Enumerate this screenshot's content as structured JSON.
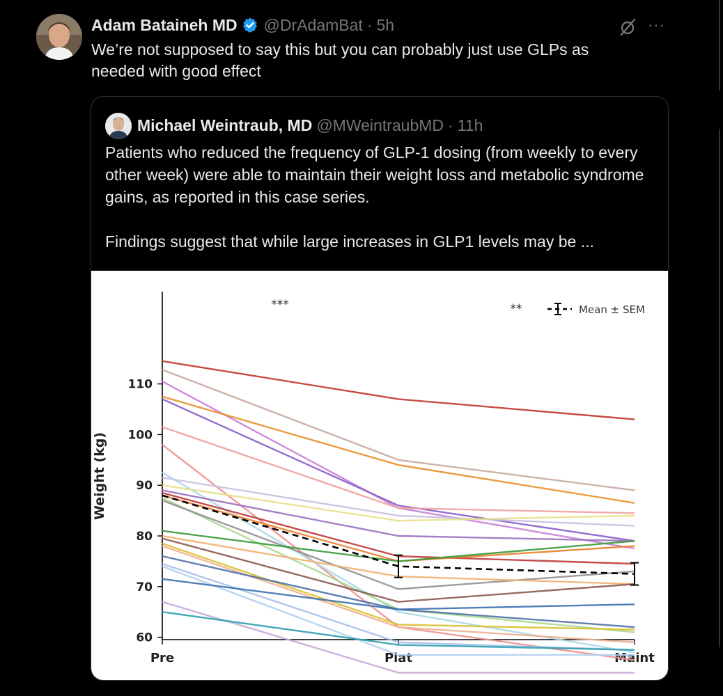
{
  "tweet": {
    "author_name": "Adam Bataineh MD",
    "handle": "@DrAdamBat",
    "separator": "·",
    "time": "5h",
    "text": "We’re not supposed to say this but you can probably just use GLPs as needed with good effect",
    "verified_color": "#1d9bf0",
    "more_label": "···"
  },
  "quote": {
    "author_name": "Michael Weintraub, MD",
    "handle": "@MWeintraubMD",
    "separator": "·",
    "time": "11h",
    "paragraphs": [
      "Patients who reduced the frequency of GLP-1 dosing (from weekly to every other week) were able to maintain their weight loss and metabolic syndrome gains, as reported in this case series.",
      "Findings suggest that while large increases in GLP1 levels may be ..."
    ]
  },
  "chart_data": {
    "type": "line",
    "categories": [
      "Pre",
      "Plat",
      "Maint"
    ],
    "ylabel": "Weight (kg)",
    "yticks": [
      60,
      70,
      80,
      90,
      100,
      110
    ],
    "ylim": [
      51,
      116
    ],
    "legend": "Mean ± SEM",
    "legend_position": "top-right",
    "annotations": [
      "***",
      "**"
    ],
    "grid": false,
    "mean": {
      "values": [
        88,
        74,
        72.5
      ],
      "sem": [
        null,
        2.2,
        2.2
      ],
      "color": "#000000"
    },
    "series": [
      {
        "values": [
          114.5,
          107,
          103
        ],
        "color": "#c0392b"
      },
      {
        "values": [
          112.8,
          95,
          89
        ],
        "color": "#c8a8a0"
      },
      {
        "values": [
          110.5,
          85.5,
          77.5
        ],
        "color": "#c880d8"
      },
      {
        "values": [
          107.5,
          94,
          86.5
        ],
        "color": "#e8902a"
      },
      {
        "values": [
          107,
          86,
          79
        ],
        "color": "#8a5cc8"
      },
      {
        "values": [
          101.5,
          85.5,
          84.5
        ],
        "color": "#f0a0a0"
      },
      {
        "values": [
          98,
          62,
          55.5
        ],
        "color": "#f09090"
      },
      {
        "values": [
          92.5,
          65,
          57
        ],
        "color": "#a8d8e8"
      },
      {
        "values": [
          91.5,
          84,
          82
        ],
        "color": "#c8c0e0"
      },
      {
        "values": [
          90,
          83,
          84
        ],
        "color": "#e8e08a"
      },
      {
        "values": [
          89,
          80,
          79
        ],
        "color": "#9a70c0"
      },
      {
        "values": [
          88.5,
          76,
          74.5
        ],
        "color": "#c03838"
      },
      {
        "values": [
          88,
          75,
          78
        ],
        "color": "#e8802a"
      },
      {
        "values": [
          87.5,
          65.5,
          61
        ],
        "color": "#a8d890"
      },
      {
        "values": [
          87,
          69.5,
          73
        ],
        "color": "#909090"
      },
      {
        "values": [
          81,
          75,
          79
        ],
        "color": "#3a9a3a"
      },
      {
        "values": [
          80,
          72,
          70.5
        ],
        "color": "#f0b070"
      },
      {
        "values": [
          79.5,
          67,
          70.5
        ],
        "color": "#8a5a50"
      },
      {
        "values": [
          78.5,
          62.5,
          61.5
        ],
        "color": "#d8c030"
      },
      {
        "values": [
          78,
          62,
          59
        ],
        "color": "#f0b090"
      },
      {
        "values": [
          76,
          65.5,
          62
        ],
        "color": "#5070a8"
      },
      {
        "values": [
          74.5,
          59,
          57.5
        ],
        "color": "#a8c0e8"
      },
      {
        "values": [
          74,
          56.5,
          56.5
        ],
        "color": "#b0d0f0"
      },
      {
        "values": [
          71.5,
          65.5,
          66.5
        ],
        "color": "#3a70b0"
      },
      {
        "values": [
          67,
          53,
          53
        ],
        "color": "#c8a8d8"
      },
      {
        "values": [
          65,
          58.5,
          57.5
        ],
        "color": "#30a0b0"
      }
    ]
  }
}
